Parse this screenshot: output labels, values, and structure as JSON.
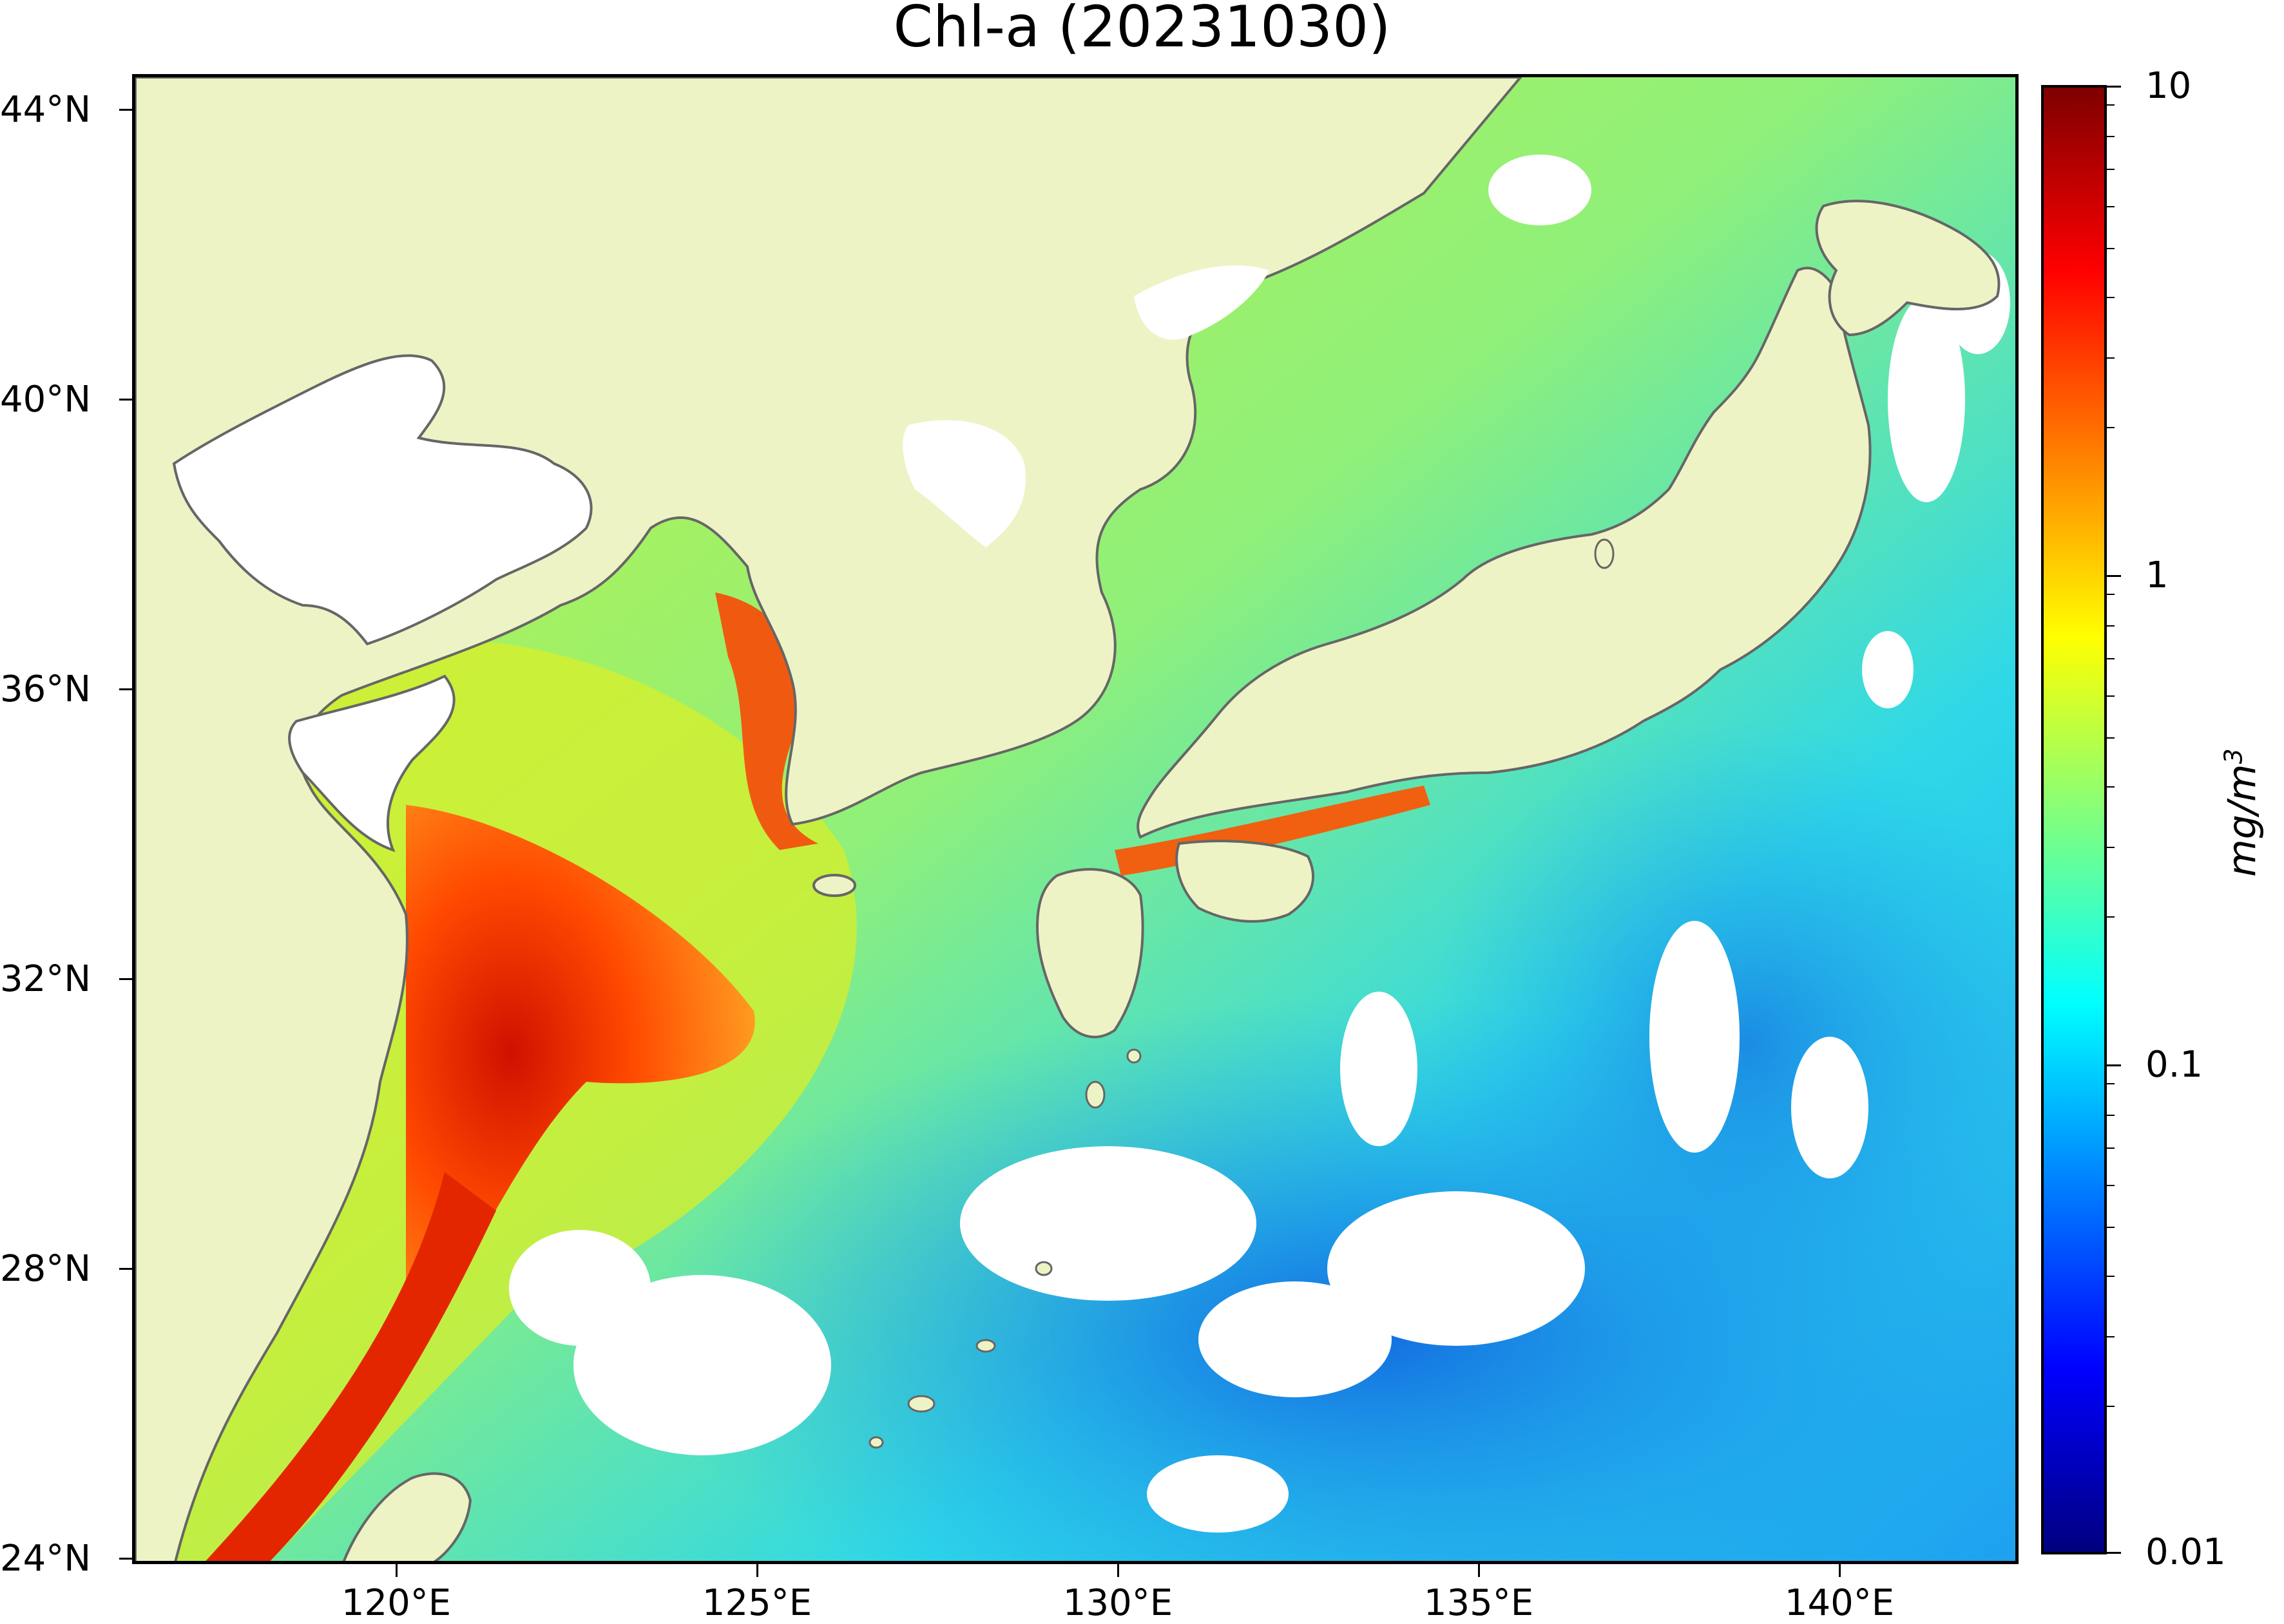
{
  "title": "Chl-a (20231030)",
  "y_axis": {
    "ticks": [
      "44°N",
      "40°N",
      "36°N",
      "32°N",
      "28°N",
      "24°N"
    ]
  },
  "x_axis": {
    "ticks": [
      "120°E",
      "125°E",
      "130°E",
      "135°E",
      "140°E"
    ]
  },
  "colorbar": {
    "unit_main": "mg/m",
    "unit_sup": "3",
    "scale": "log",
    "ticks": [
      "10",
      "1",
      "0.1",
      "0.01"
    ],
    "colors": [
      "#7f0000",
      "#ff0000",
      "#ff7f00",
      "#ffff00",
      "#7fff7f",
      "#00ffff",
      "#007fff",
      "#0000ff",
      "#00007f"
    ]
  },
  "map": {
    "land_color": "#eef3c6",
    "no_data_color": "#ffffff",
    "coast_color": "#666666"
  }
}
